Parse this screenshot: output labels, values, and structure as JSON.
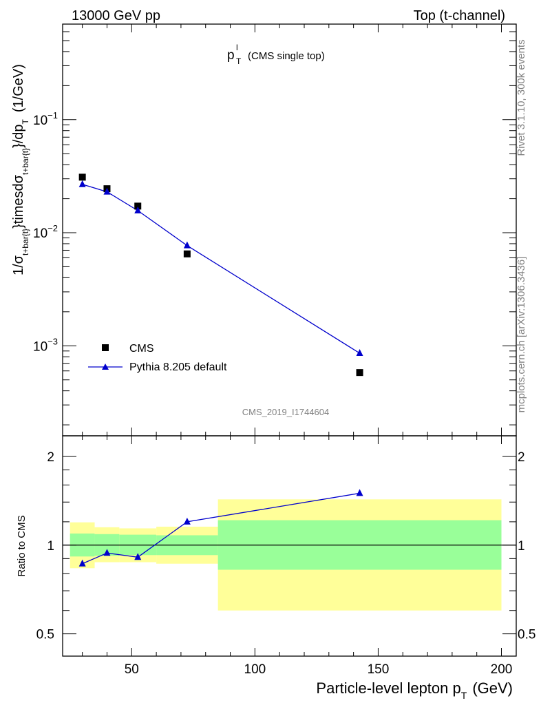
{
  "header": {
    "left": "13000 GeV pp",
    "right": "Top (t-channel)"
  },
  "side_labels": {
    "rivet": "Rivet 3.1.10,  300k events",
    "mcplots": "mcplots.cern.ch [arXiv:1306.3436]"
  },
  "chart_data": [
    {
      "type": "scatter",
      "panel": "main",
      "title_main": "p",
      "title_sup": "l",
      "title_sub": "T",
      "title_rest": "(CMS single top)",
      "ylabel": "1/σ_{t+bar{t}} times dσ_{t+bar{t}}/dp_T (1/GeV)",
      "ylabel_parts": {
        "a": "1/σ",
        "a_sub": "t+bar{t}",
        "b": "}timesdσ",
        "b_sub": "t+bar{t}",
        "c": "}/dp",
        "c_sub": "T",
        "d": "(1/GeV)"
      },
      "yscale": "log",
      "xlim": [
        22,
        206
      ],
      "ylim": [
        0.00016,
        0.7
      ],
      "y_ticks": [
        {
          "value": 0.001,
          "base": "10",
          "exp": "−3"
        },
        {
          "value": 0.01,
          "base": "10",
          "exp": "−2"
        },
        {
          "value": 0.1,
          "base": "10",
          "exp": "−1"
        }
      ],
      "legend_position": "lower-left",
      "watermark": "CMS_2019_I1744604",
      "series": [
        {
          "name": "CMS",
          "marker": "square",
          "color": "#000000",
          "x": [
            30,
            40,
            52.5,
            72.5,
            142.5
          ],
          "y": [
            0.031,
            0.0245,
            0.0172,
            0.0065,
            0.00058
          ]
        },
        {
          "name": "Pythia 8.205 default",
          "marker": "triangle",
          "color": "#0000cc",
          "x": [
            30,
            40,
            52.5,
            72.5,
            142.5
          ],
          "y": [
            0.0268,
            0.023,
            0.0157,
            0.0077,
            0.00086
          ]
        }
      ]
    },
    {
      "type": "line",
      "panel": "ratio",
      "ylabel": "Ratio to CMS",
      "yscale": "log",
      "xlim": [
        22,
        206
      ],
      "ylim": [
        0.42,
        2.35
      ],
      "x_ticks": [
        "50",
        "100",
        "150",
        "200"
      ],
      "x_tick_values": [
        50,
        100,
        150,
        200
      ],
      "y_ticks": [
        "0.5",
        "1",
        "2"
      ],
      "y_tick_values": [
        0.5,
        1,
        2
      ],
      "xlabel": "Particle-level lepton p",
      "xlabel_sub": "T",
      "xlabel_unit": "(GeV)",
      "bands": [
        {
          "x0": 25,
          "x1": 35,
          "y_lo": 0.835,
          "y_hi": 1.195,
          "stat_lo": 0.915,
          "stat_hi": 1.095
        },
        {
          "x0": 35,
          "x1": 45,
          "y_lo": 0.875,
          "y_hi": 1.15,
          "stat_lo": 0.92,
          "stat_hi": 1.09
        },
        {
          "x0": 45,
          "x1": 60,
          "y_lo": 0.875,
          "y_hi": 1.14,
          "stat_lo": 0.925,
          "stat_hi": 1.085
        },
        {
          "x0": 60,
          "x1": 85,
          "y_lo": 0.865,
          "y_hi": 1.155,
          "stat_lo": 0.925,
          "stat_hi": 1.08
        },
        {
          "x0": 85,
          "x1": 200,
          "y_lo": 0.6,
          "y_hi": 1.43,
          "stat_lo": 0.825,
          "stat_hi": 1.215
        }
      ],
      "band_colors": {
        "syst": "#ffff99",
        "stat": "#99ff99"
      },
      "series": [
        {
          "name": "Pythia 8.205 default",
          "color": "#0000cc",
          "x": [
            30,
            40,
            52.5,
            72.5,
            142.5
          ],
          "y": [
            0.865,
            0.94,
            0.91,
            1.2,
            1.5
          ]
        }
      ]
    }
  ]
}
